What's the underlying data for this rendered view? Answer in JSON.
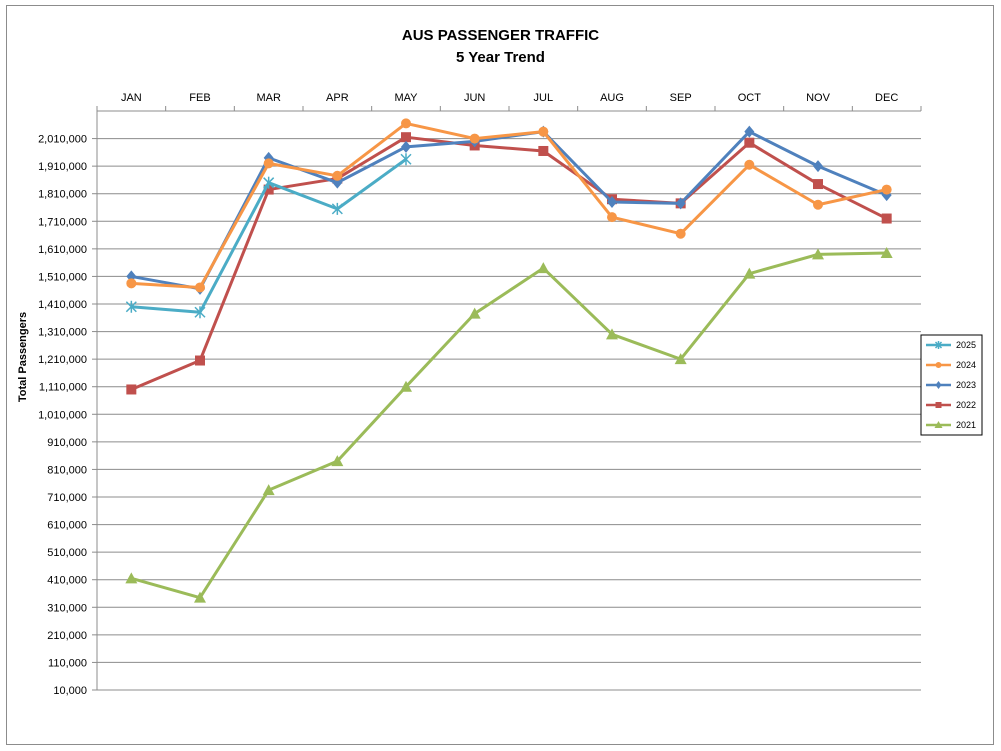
{
  "chart_data": {
    "type": "line",
    "title": "AUS PASSENGER TRAFFIC",
    "subtitle": "5 Year Trend",
    "ylabel": "Total Passengers",
    "xlabel": "",
    "categories": [
      "JAN",
      "FEB",
      "MAR",
      "APR",
      "MAY",
      "JUN",
      "JUL",
      "AUG",
      "SEP",
      "OCT",
      "NOV",
      "DEC"
    ],
    "yticks": [
      10000,
      110000,
      210000,
      310000,
      410000,
      510000,
      610000,
      710000,
      810000,
      910000,
      1010000,
      1110000,
      1210000,
      1310000,
      1410000,
      1510000,
      1610000,
      1710000,
      1810000,
      1910000,
      2010000
    ],
    "ylim": [
      10000,
      2110000
    ],
    "grid": true,
    "x_axis_position": "top",
    "legend_position": "right",
    "series": [
      {
        "name": "2025",
        "color": "#4BACC6",
        "marker": "asterisk",
        "values": [
          1400000,
          1380000,
          1850000,
          1755000,
          1935000,
          null,
          null,
          null,
          null,
          null,
          null,
          null
        ]
      },
      {
        "name": "2024",
        "color": "#F79646",
        "marker": "circle",
        "values": [
          1485000,
          1470000,
          1920000,
          1875000,
          2065000,
          2010000,
          2035000,
          1725000,
          1665000,
          1915000,
          1770000,
          1825000
        ]
      },
      {
        "name": "2023",
        "color": "#4F81BD",
        "marker": "diamond",
        "values": [
          1510000,
          1465000,
          1940000,
          1850000,
          1980000,
          2000000,
          2035000,
          1780000,
          1775000,
          2035000,
          1910000,
          1805000
        ]
      },
      {
        "name": "2022",
        "color": "#C0504D",
        "marker": "square",
        "values": [
          1100000,
          1205000,
          1825000,
          1865000,
          2015000,
          1985000,
          1965000,
          1790000,
          1775000,
          1995000,
          1845000,
          1720000
        ]
      },
      {
        "name": "2021",
        "color": "#9BBB59",
        "marker": "triangle",
        "values": [
          415000,
          345000,
          735000,
          840000,
          1110000,
          1375000,
          1540000,
          1300000,
          1210000,
          1520000,
          1590000,
          1595000
        ]
      }
    ]
  }
}
